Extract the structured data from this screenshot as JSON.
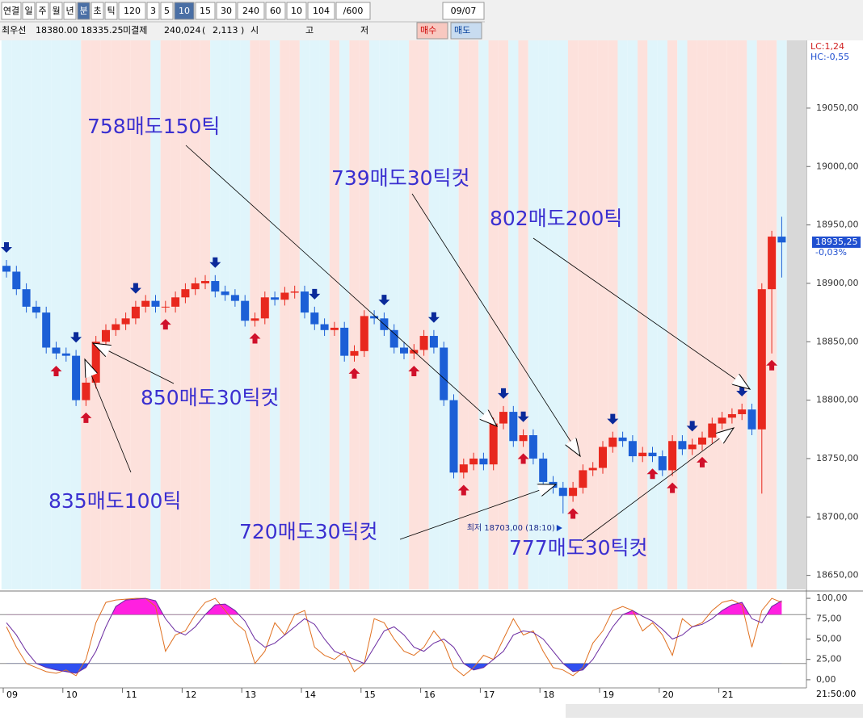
{
  "toolbar": {
    "row1": [
      "연결",
      "일",
      "주",
      "월",
      "년",
      "분",
      "초",
      "틱",
      "120",
      "3",
      "5",
      "10",
      "15",
      "30",
      "240",
      "60",
      "10",
      "104",
      "/600",
      "09/07"
    ],
    "row2": [
      "최우선",
      "18380.00",
      "18335.25",
      "미결제",
      "240,024",
      "(",
      "2,113",
      ")",
      "시",
      "고",
      "저",
      "매수",
      "매도"
    ]
  },
  "annotations": [
    "758매도150틱",
    "739매도30틱컷",
    "802매도200틱",
    "850매도30틱컷",
    "835매도100틱",
    "720매도30틱컷",
    "777매도30틱컷"
  ],
  "time_label": "21:50:00",
  "chart_data": [
    {
      "type": "candlestick",
      "up_color": "#e8281e",
      "down_color": "#1c5fd6",
      "categories": [
        "09",
        null,
        null,
        null,
        null,
        null,
        "10",
        null,
        null,
        null,
        null,
        null,
        "11",
        null,
        null,
        null,
        null,
        null,
        "12",
        null,
        null,
        null,
        null,
        null,
        "13",
        null,
        null,
        null,
        null,
        null,
        "14",
        null,
        null,
        null,
        null,
        null,
        "15",
        null,
        null,
        null,
        null,
        null,
        "16",
        null,
        null,
        null,
        null,
        null,
        "17",
        null,
        null,
        null,
        null,
        null,
        "18",
        null,
        null,
        null,
        null,
        null,
        "19",
        null,
        null,
        null,
        null,
        null,
        "20",
        null,
        null,
        null,
        null,
        null,
        "21",
        null,
        null,
        null,
        null,
        null,
        null
      ],
      "open": [
        18915,
        18910,
        18895,
        18880,
        18875,
        18845,
        18840,
        18838,
        18800,
        18815,
        18850,
        18860,
        18865,
        18870,
        18880,
        18885,
        18880,
        18880,
        18888,
        18895,
        18900,
        18902,
        18893,
        18890,
        18885,
        18868,
        18870,
        18888,
        18886,
        18892,
        18893,
        18875,
        18865,
        18860,
        18862,
        18838,
        18842,
        18872,
        18870,
        18860,
        18845,
        18840,
        18843,
        18855,
        18845,
        18800,
        18738,
        18745,
        18750,
        18745,
        18780,
        18790,
        18765,
        18770,
        18750,
        18730,
        18725,
        18718,
        18725,
        18740,
        18742,
        18760,
        18768,
        18765,
        18752,
        18755,
        18752,
        18740,
        18765,
        18758,
        18762,
        18768,
        18780,
        18785,
        18788,
        18792,
        18775,
        18895,
        18940
      ],
      "high": [
        18920,
        18915,
        18900,
        18885,
        18880,
        18850,
        18845,
        18843,
        18820,
        18855,
        18865,
        18870,
        18875,
        18885,
        18890,
        18890,
        18885,
        18893,
        18900,
        18905,
        18907,
        18907,
        18898,
        18895,
        18890,
        18875,
        18893,
        18893,
        18897,
        18898,
        18898,
        18880,
        18870,
        18867,
        18867,
        18847,
        18877,
        18877,
        18875,
        18865,
        18850,
        18848,
        18860,
        18860,
        18850,
        18805,
        18750,
        18755,
        18755,
        18785,
        18795,
        18795,
        18775,
        18775,
        18755,
        18735,
        18730,
        18730,
        18745,
        18747,
        18765,
        18773,
        18773,
        18770,
        18760,
        18760,
        18757,
        18770,
        18770,
        18767,
        18773,
        18785,
        18790,
        18793,
        18797,
        18797,
        18900,
        18945,
        18957
      ],
      "low": [
        18905,
        18890,
        18875,
        18870,
        18840,
        18835,
        18833,
        18795,
        18795,
        18810,
        18845,
        18855,
        18860,
        18865,
        18875,
        18875,
        18875,
        18875,
        18883,
        18890,
        18895,
        18888,
        18885,
        18880,
        18863,
        18863,
        18865,
        18881,
        18881,
        18887,
        18870,
        18860,
        18855,
        18855,
        18833,
        18833,
        18837,
        18865,
        18855,
        18840,
        18835,
        18835,
        18838,
        18840,
        18795,
        18733,
        18733,
        18740,
        18740,
        18740,
        18775,
        18760,
        18760,
        18745,
        18725,
        18720,
        18703,
        18713,
        18720,
        18735,
        18737,
        18755,
        18760,
        18747,
        18747,
        18747,
        18735,
        18735,
        18753,
        18753,
        18757,
        18763,
        18775,
        18780,
        18783,
        18770,
        18720,
        18840,
        18905
      ],
      "close": [
        18910,
        18895,
        18880,
        18875,
        18845,
        18840,
        18838,
        18800,
        18815,
        18850,
        18860,
        18865,
        18870,
        18880,
        18885,
        18880,
        18880,
        18888,
        18895,
        18900,
        18902,
        18893,
        18890,
        18885,
        18868,
        18870,
        18888,
        18886,
        18892,
        18893,
        18875,
        18865,
        18860,
        18862,
        18838,
        18842,
        18872,
        18870,
        18860,
        18845,
        18840,
        18843,
        18855,
        18845,
        18800,
        18738,
        18745,
        18750,
        18745,
        18780,
        18790,
        18765,
        18770,
        18750,
        18730,
        18725,
        18718,
        18725,
        18740,
        18742,
        18760,
        18768,
        18765,
        18752,
        18755,
        18752,
        18740,
        18765,
        18758,
        18762,
        18768,
        18780,
        18785,
        18788,
        18792,
        18775,
        18895,
        18940,
        18935
      ],
      "ylim": [
        18638,
        19108
      ],
      "yticks": [
        {
          "value": 18650,
          "label": "18650,00"
        },
        {
          "value": 18700,
          "label": "18700,00"
        },
        {
          "value": 18750,
          "label": "18750,00"
        },
        {
          "value": 18800,
          "label": "18800,00"
        },
        {
          "value": 18850,
          "label": "18850,00"
        },
        {
          "value": 18900,
          "label": "18900,00"
        },
        {
          "value": 18950,
          "label": "18950,00"
        },
        {
          "value": 19000,
          "label": "19000,00"
        },
        {
          "value": 19050,
          "label": "19050,00"
        }
      ],
      "indicators": [
        "LC:1,24",
        "HC:-0,55"
      ],
      "last_price": {
        "value": 18935.25,
        "label": "18935,25"
      },
      "change": "-0,03%",
      "low_label": "최저 18703,00 (18:10)",
      "sell_signals": [
        0,
        7,
        13,
        21,
        31,
        38,
        43,
        50,
        52,
        61,
        69,
        74
      ],
      "buy_signals": [
        5,
        8,
        16,
        25,
        35,
        41,
        46,
        52,
        57,
        65,
        67,
        70,
        77
      ]
    },
    {
      "type": "line",
      "overbought": 80,
      "oversold": 20,
      "series": [
        {
          "color": "#e07020",
          "values": [
            65,
            40,
            20,
            15,
            10,
            8,
            12,
            5,
            25,
            70,
            95,
            98,
            99,
            100,
            100,
            90,
            35,
            55,
            60,
            80,
            95,
            100,
            85,
            70,
            60,
            20,
            35,
            70,
            55,
            80,
            85,
            40,
            30,
            25,
            35,
            10,
            20,
            75,
            70,
            50,
            35,
            30,
            40,
            60,
            45,
            15,
            5,
            15,
            30,
            25,
            50,
            75,
            55,
            60,
            35,
            15,
            12,
            5,
            15,
            45,
            60,
            85,
            90,
            85,
            60,
            70,
            55,
            30,
            75,
            65,
            70,
            85,
            95,
            98,
            92,
            40,
            85,
            100,
            95
          ]
        },
        {
          "color": "#6a2aa0",
          "values": [
            70,
            55,
            35,
            20,
            15,
            12,
            10,
            8,
            15,
            35,
            65,
            90,
            98,
            99,
            100,
            97,
            75,
            60,
            55,
            65,
            80,
            92,
            93,
            85,
            72,
            50,
            40,
            45,
            55,
            65,
            75,
            68,
            50,
            35,
            30,
            25,
            20,
            40,
            60,
            65,
            55,
            40,
            35,
            45,
            50,
            40,
            20,
            12,
            15,
            25,
            35,
            55,
            60,
            58,
            50,
            35,
            20,
            10,
            12,
            25,
            45,
            65,
            80,
            85,
            78,
            72,
            62,
            50,
            55,
            65,
            68,
            75,
            85,
            92,
            95,
            75,
            70,
            90,
            97
          ]
        }
      ],
      "ylim": [
        -10,
        108
      ],
      "yticks": [
        {
          "value": 0,
          "label": "0,00"
        },
        {
          "value": 25,
          "label": "25,00"
        },
        {
          "value": 50,
          "label": "50,00"
        },
        {
          "value": 75,
          "label": "75,00"
        },
        {
          "value": 100,
          "label": "100,00"
        }
      ]
    }
  ]
}
